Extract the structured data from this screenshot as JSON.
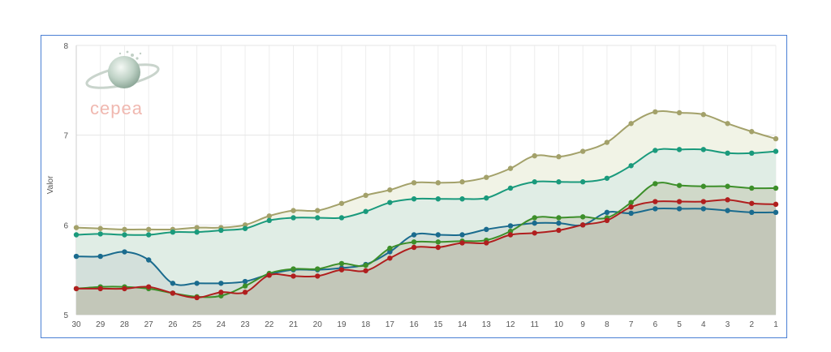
{
  "chart_data": {
    "type": "line",
    "subtype": "area",
    "xlabel": "",
    "ylabel": "Valor",
    "ylim": [
      5,
      8
    ],
    "yticks": [
      5,
      6,
      7,
      8
    ],
    "categories": [
      "30",
      "29",
      "28",
      "27",
      "26",
      "25",
      "24",
      "23",
      "22",
      "21",
      "20",
      "19",
      "18",
      "17",
      "16",
      "15",
      "14",
      "13",
      "12",
      "11",
      "10",
      "9",
      "8",
      "7",
      "6",
      "5",
      "4",
      "3",
      "2",
      "1"
    ],
    "grid": "vertical-and-horizontal",
    "legend": "none",
    "series": [
      {
        "color": "#a3a16a",
        "fill": "#f1f3e6",
        "values": [
          5.97,
          5.96,
          5.95,
          5.95,
          5.95,
          5.97,
          5.97,
          6.0,
          6.1,
          6.16,
          6.16,
          6.24,
          6.33,
          6.39,
          6.47,
          6.47,
          6.48,
          6.53,
          6.63,
          6.77,
          6.76,
          6.82,
          6.92,
          7.13,
          7.26,
          7.25,
          7.23,
          7.13,
          7.04,
          6.96
        ]
      },
      {
        "color": "#1a9a7c",
        "fill": "#e0ede5",
        "values": [
          5.89,
          5.9,
          5.89,
          5.89,
          5.92,
          5.92,
          5.94,
          5.96,
          6.05,
          6.08,
          6.08,
          6.08,
          6.15,
          6.25,
          6.29,
          6.29,
          6.29,
          6.3,
          6.41,
          6.48,
          6.48,
          6.48,
          6.52,
          6.66,
          6.83,
          6.84,
          6.84,
          6.8,
          6.8,
          6.82
        ]
      },
      {
        "color": "#1a6b8e",
        "fill": "#d3e0db",
        "values": [
          5.65,
          5.65,
          5.7,
          5.61,
          5.35,
          5.35,
          5.35,
          5.37,
          5.45,
          5.5,
          5.5,
          5.52,
          5.56,
          5.7,
          5.89,
          5.89,
          5.89,
          5.95,
          5.99,
          6.02,
          6.02,
          6.0,
          6.14,
          6.13,
          6.18,
          6.18,
          6.18,
          6.16,
          6.14,
          6.14
        ]
      },
      {
        "color": "#3d8f2a",
        "fill": "#d0d9c9",
        "values": [
          5.29,
          5.31,
          5.31,
          5.29,
          5.24,
          5.2,
          5.21,
          5.32,
          5.46,
          5.51,
          5.51,
          5.57,
          5.55,
          5.74,
          5.81,
          5.81,
          5.82,
          5.83,
          5.93,
          6.08,
          6.08,
          6.09,
          6.08,
          6.25,
          6.46,
          6.44,
          6.43,
          6.43,
          6.41,
          6.41
        ]
      },
      {
        "color": "#b01e1e",
        "fill": "#c3c7b9",
        "values": [
          5.29,
          5.29,
          5.29,
          5.31,
          5.24,
          5.19,
          5.25,
          5.25,
          5.44,
          5.43,
          5.43,
          5.5,
          5.49,
          5.63,
          5.75,
          5.75,
          5.8,
          5.8,
          5.89,
          5.91,
          5.94,
          6.0,
          6.05,
          6.2,
          6.26,
          6.26,
          6.26,
          6.28,
          6.24,
          6.23
        ]
      }
    ]
  },
  "logo": {
    "text": "cepea",
    "icon": "globe-icon"
  }
}
